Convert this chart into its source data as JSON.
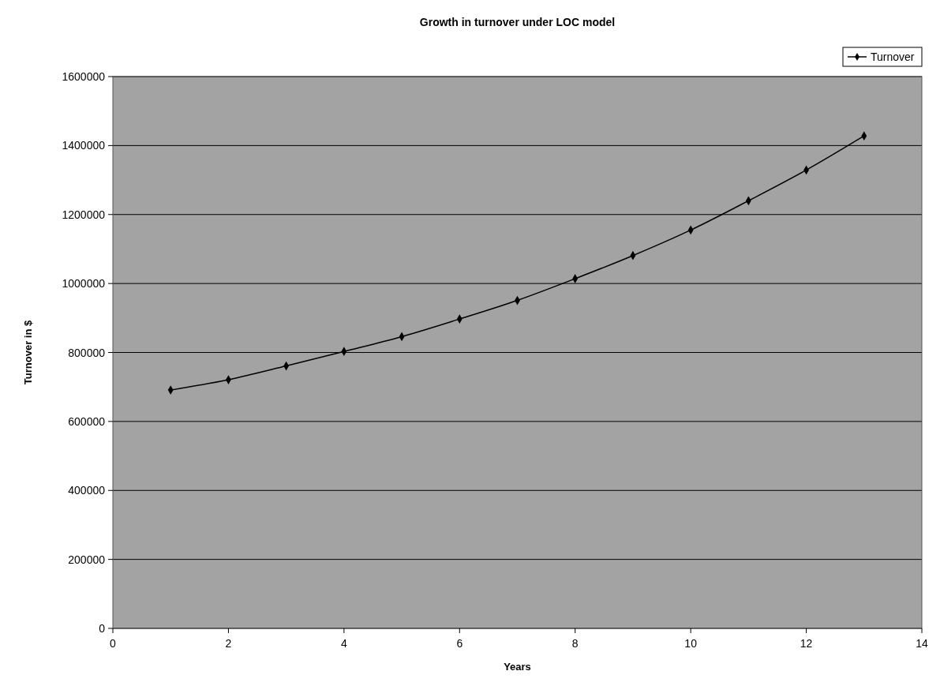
{
  "chart_data": {
    "type": "line",
    "title": "Growth in turnover under LOC model",
    "xlabel": "Years",
    "ylabel": "Turnover in $",
    "x": [
      1,
      2,
      3,
      4,
      5,
      6,
      7,
      8,
      9,
      10,
      11,
      12,
      13
    ],
    "series": [
      {
        "name": "Turnover",
        "color": "#000000",
        "values": [
          691000,
          721000,
          761000,
          803000,
          846000,
          897000,
          951000,
          1014000,
          1081000,
          1155000,
          1240000,
          1329000,
          1428000
        ]
      }
    ],
    "xlim": [
      0,
      14
    ],
    "xticks": [
      0,
      2,
      4,
      6,
      8,
      10,
      12,
      14
    ],
    "ylim": [
      0,
      1600000
    ],
    "yticks": [
      0,
      200000,
      400000,
      600000,
      800000,
      1000000,
      1200000,
      1400000,
      1600000
    ],
    "grid": "y",
    "legend": "top right",
    "marker": "diamond",
    "line_style": "solid"
  }
}
